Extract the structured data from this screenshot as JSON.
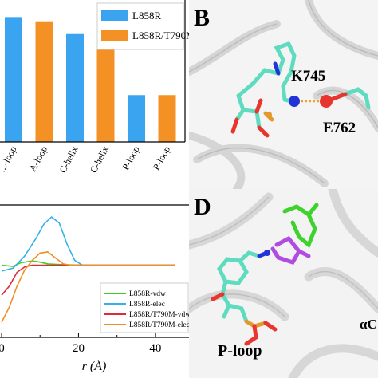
{
  "chart_data": [
    {
      "type": "bar",
      "categories": [
        "...-loop",
        "A-loop",
        "C-helix",
        "C-helix",
        "P-loop",
        "P-loop"
      ],
      "series": [
        {
          "name": "L858R",
          "color": "#3aa4f0"
        },
        {
          "name": "L858R/T790M",
          "color": "#f39124"
        }
      ],
      "bar_series": [
        0,
        1,
        0,
        1,
        0,
        1
      ],
      "values": [
        0.88,
        0.85,
        0.76,
        0.72,
        0.33,
        0.33
      ],
      "ylim": [
        0,
        1
      ]
    },
    {
      "type": "line",
      "xlabel": "r (Å)",
      "xlim": [
        0,
        45
      ],
      "ylim": [
        -1.2,
        1.0
      ],
      "x_ticks": [
        "0",
        "20",
        "40"
      ],
      "series": [
        {
          "name": "L858R-vdw",
          "color": "#3ecf1f",
          "points": [
            [
              0,
              0
            ],
            [
              3,
              -0.02
            ],
            [
              5,
              0.04
            ],
            [
              8,
              0.07
            ],
            [
              10,
              0.05
            ],
            [
              12,
              0.02
            ],
            [
              15,
              0.01
            ],
            [
              20,
              0
            ],
            [
              45,
              0
            ]
          ]
        },
        {
          "name": "L858R-elec",
          "color": "#35b0e8",
          "points": [
            [
              0,
              -0.1
            ],
            [
              3,
              -0.05
            ],
            [
              6,
              0.15
            ],
            [
              9,
              0.45
            ],
            [
              11,
              0.68
            ],
            [
              13,
              0.8
            ],
            [
              15,
              0.7
            ],
            [
              17,
              0.35
            ],
            [
              19,
              0.08
            ],
            [
              21,
              0
            ],
            [
              45,
              0
            ]
          ]
        },
        {
          "name": "L858R/T790M-vdw",
          "color": "#e02a35",
          "points": [
            [
              0,
              -0.5
            ],
            [
              2,
              -0.35
            ],
            [
              4,
              -0.12
            ],
            [
              6,
              -0.03
            ],
            [
              8,
              0
            ],
            [
              45,
              0
            ]
          ]
        },
        {
          "name": "L858R/T790M-elec",
          "color": "#ef8f26",
          "points": [
            [
              0,
              -0.95
            ],
            [
              2,
              -0.7
            ],
            [
              4,
              -0.35
            ],
            [
              6,
              -0.08
            ],
            [
              8,
              0.08
            ],
            [
              10,
              0.2
            ],
            [
              12,
              0.22
            ],
            [
              14,
              0.12
            ],
            [
              16,
              0.02
            ],
            [
              18,
              0
            ],
            [
              45,
              0
            ]
          ]
        }
      ]
    }
  ],
  "panels": {
    "b": {
      "letter": "B",
      "residue_labels": [
        "K745",
        "E762"
      ]
    },
    "d": {
      "letter": "D",
      "region_labels": [
        "P-loop",
        "αC"
      ]
    }
  },
  "colors": {
    "carbon_cyan": "#5fdcc0",
    "oxygen_red": "#e8352e",
    "nitrogen_blue": "#2433d6",
    "phosphorus_orange": "#e49a2a",
    "ligand_green": "#3ed22c",
    "ligand_purple": "#b04de0",
    "hbond": "#f0a020"
  }
}
